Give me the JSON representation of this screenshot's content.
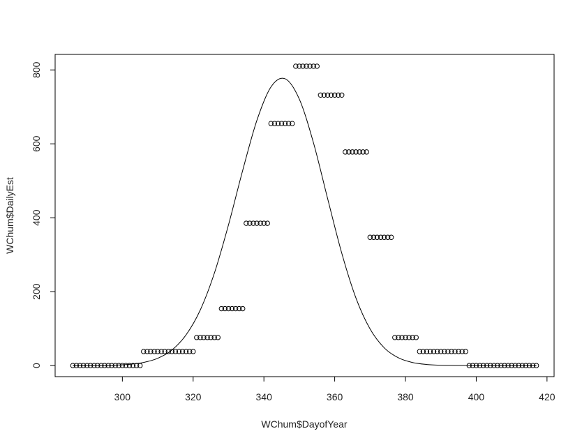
{
  "chart_data": {
    "type": "scatter",
    "xlabel": "WChum$DayofYear",
    "ylabel": "WChum$DailyEst",
    "xlim": [
      281,
      422
    ],
    "ylim": [
      -30,
      842
    ],
    "x_ticks": [
      300,
      320,
      340,
      360,
      380,
      400,
      420
    ],
    "y_ticks": [
      0,
      200,
      400,
      600,
      800
    ],
    "x_tick_labels": [
      "300",
      "320",
      "340",
      "360",
      "380",
      "400",
      "420"
    ],
    "y_tick_labels": [
      "0",
      "200",
      "400",
      "600",
      "800"
    ],
    "grid": false,
    "point_style": "open-circle",
    "colors": {
      "points": "#000000",
      "curve": "#000000",
      "axes": "#000000"
    },
    "points": [
      [
        286,
        0
      ],
      [
        287,
        0
      ],
      [
        288,
        0
      ],
      [
        289,
        0
      ],
      [
        290,
        0
      ],
      [
        291,
        0
      ],
      [
        292,
        0
      ],
      [
        293,
        0
      ],
      [
        294,
        0
      ],
      [
        295,
        0
      ],
      [
        296,
        0
      ],
      [
        297,
        0
      ],
      [
        298,
        0
      ],
      [
        299,
        0
      ],
      [
        300,
        0
      ],
      [
        301,
        0
      ],
      [
        302,
        0
      ],
      [
        303,
        0
      ],
      [
        304,
        0
      ],
      [
        305,
        0
      ],
      [
        306,
        38
      ],
      [
        307,
        38
      ],
      [
        308,
        38
      ],
      [
        309,
        38
      ],
      [
        310,
        38
      ],
      [
        311,
        38
      ],
      [
        312,
        38
      ],
      [
        313,
        38
      ],
      [
        314,
        38
      ],
      [
        315,
        38
      ],
      [
        316,
        38
      ],
      [
        317,
        38
      ],
      [
        318,
        38
      ],
      [
        319,
        38
      ],
      [
        320,
        38
      ],
      [
        321,
        76
      ],
      [
        322,
        76
      ],
      [
        323,
        76
      ],
      [
        324,
        76
      ],
      [
        325,
        76
      ],
      [
        326,
        76
      ],
      [
        327,
        76
      ],
      [
        328,
        154
      ],
      [
        329,
        154
      ],
      [
        330,
        154
      ],
      [
        331,
        154
      ],
      [
        332,
        154
      ],
      [
        333,
        154
      ],
      [
        334,
        154
      ],
      [
        335,
        385
      ],
      [
        336,
        385
      ],
      [
        337,
        385
      ],
      [
        338,
        385
      ],
      [
        339,
        385
      ],
      [
        340,
        385
      ],
      [
        341,
        385
      ],
      [
        342,
        655
      ],
      [
        343,
        655
      ],
      [
        344,
        655
      ],
      [
        345,
        655
      ],
      [
        346,
        655
      ],
      [
        347,
        655
      ],
      [
        348,
        655
      ],
      [
        349,
        810
      ],
      [
        350,
        810
      ],
      [
        351,
        810
      ],
      [
        352,
        810
      ],
      [
        353,
        810
      ],
      [
        354,
        810
      ],
      [
        355,
        810
      ],
      [
        356,
        732
      ],
      [
        357,
        732
      ],
      [
        358,
        732
      ],
      [
        359,
        732
      ],
      [
        360,
        732
      ],
      [
        361,
        732
      ],
      [
        362,
        732
      ],
      [
        363,
        578
      ],
      [
        364,
        578
      ],
      [
        365,
        578
      ],
      [
        366,
        578
      ],
      [
        367,
        578
      ],
      [
        368,
        578
      ],
      [
        369,
        578
      ],
      [
        370,
        347
      ],
      [
        371,
        347
      ],
      [
        372,
        347
      ],
      [
        373,
        347
      ],
      [
        374,
        347
      ],
      [
        375,
        347
      ],
      [
        376,
        347
      ],
      [
        377,
        76
      ],
      [
        378,
        76
      ],
      [
        379,
        76
      ],
      [
        380,
        76
      ],
      [
        381,
        76
      ],
      [
        382,
        76
      ],
      [
        383,
        76
      ],
      [
        384,
        38
      ],
      [
        385,
        38
      ],
      [
        386,
        38
      ],
      [
        387,
        38
      ],
      [
        388,
        38
      ],
      [
        389,
        38
      ],
      [
        390,
        38
      ],
      [
        391,
        38
      ],
      [
        392,
        38
      ],
      [
        393,
        38
      ],
      [
        394,
        38
      ],
      [
        395,
        38
      ],
      [
        396,
        38
      ],
      [
        397,
        38
      ],
      [
        398,
        0
      ],
      [
        399,
        0
      ],
      [
        400,
        0
      ],
      [
        401,
        0
      ],
      [
        402,
        0
      ],
      [
        403,
        0
      ],
      [
        404,
        0
      ],
      [
        405,
        0
      ],
      [
        406,
        0
      ],
      [
        407,
        0
      ],
      [
        408,
        0
      ],
      [
        409,
        0
      ],
      [
        410,
        0
      ],
      [
        411,
        0
      ],
      [
        412,
        0
      ],
      [
        413,
        0
      ],
      [
        414,
        0
      ],
      [
        415,
        0
      ],
      [
        416,
        0
      ],
      [
        417,
        0
      ]
    ],
    "curve": [
      [
        286,
        0
      ],
      [
        290,
        0.1
      ],
      [
        294,
        0.4
      ],
      [
        298,
        1.2
      ],
      [
        302,
        3.3
      ],
      [
        306,
        8.5
      ],
      [
        310,
        19.7
      ],
      [
        314,
        42
      ],
      [
        318,
        83
      ],
      [
        322,
        150
      ],
      [
        326,
        250
      ],
      [
        330,
        381
      ],
      [
        334,
        528
      ],
      [
        338,
        663
      ],
      [
        342,
        754
      ],
      [
        346,
        776
      ],
      [
        350,
        721
      ],
      [
        354,
        603
      ],
      [
        358,
        452
      ],
      [
        362,
        304
      ],
      [
        366,
        183
      ],
      [
        370,
        99
      ],
      [
        374,
        48
      ],
      [
        378,
        21
      ],
      [
        382,
        8.2
      ],
      [
        386,
        2.9
      ],
      [
        390,
        0.9
      ],
      [
        394,
        0.3
      ],
      [
        398,
        0.1
      ],
      [
        402,
        0
      ],
      [
        406,
        0
      ],
      [
        410,
        0
      ],
      [
        414,
        0
      ],
      [
        417,
        0
      ]
    ]
  }
}
